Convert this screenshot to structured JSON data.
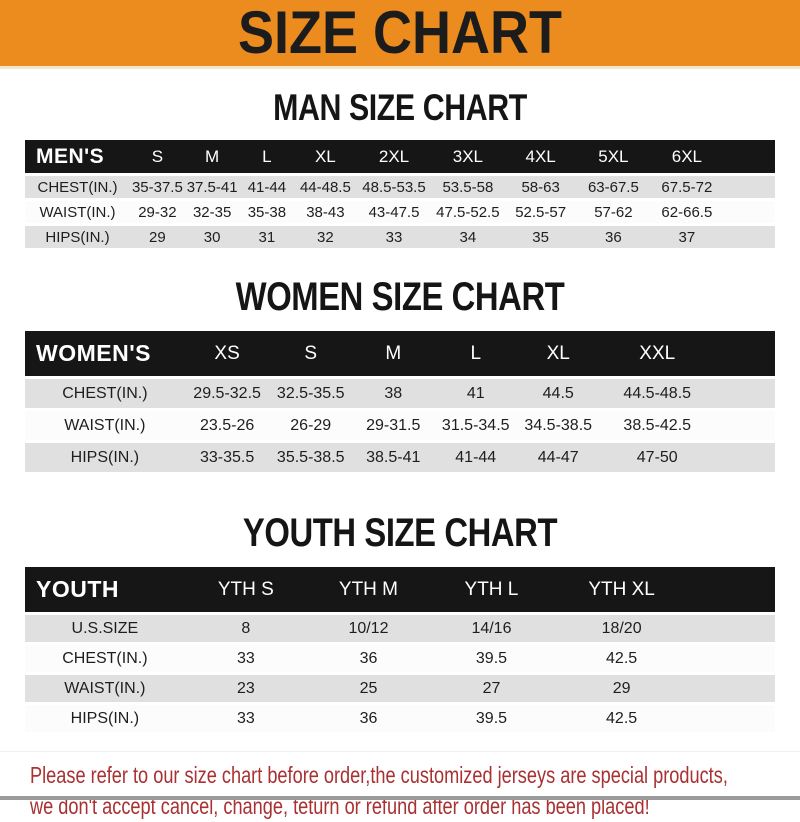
{
  "banner": {
    "title": "SIZE CHART"
  },
  "chart_data": [
    {
      "type": "table",
      "id": "men",
      "title": "MAN SIZE CHART",
      "corner_label": "MEN'S",
      "columns": [
        "S",
        "M",
        "L",
        "XL",
        "2XL",
        "3XL",
        "4XL",
        "5XL",
        "6XL"
      ],
      "rows": [
        {
          "label": "CHEST(IN.)",
          "values": [
            "35-37.5",
            "37.5-41",
            "41-44",
            "44-48.5",
            "48.5-53.5",
            "53.5-58",
            "58-63",
            "63-67.5",
            "67.5-72"
          ]
        },
        {
          "label": "WAIST(IN.)",
          "values": [
            "29-32",
            "32-35",
            "35-38",
            "38-43",
            "43-47.5",
            "47.5-52.5",
            "52.5-57",
            "57-62",
            "62-66.5"
          ]
        },
        {
          "label": "HIPS(IN.)",
          "values": [
            "29",
            "30",
            "31",
            "32",
            "33",
            "34",
            "35",
            "36",
            "37"
          ]
        }
      ]
    },
    {
      "type": "table",
      "id": "women",
      "title": "WOMEN SIZE CHART",
      "corner_label": "WOMEN'S",
      "columns": [
        "XS",
        "S",
        "M",
        "L",
        "XL",
        "XXL"
      ],
      "rows": [
        {
          "label": "CHEST(IN.)",
          "values": [
            "29.5-32.5",
            "32.5-35.5",
            "38",
            "41",
            "44.5",
            "44.5-48.5"
          ]
        },
        {
          "label": "WAIST(IN.)",
          "values": [
            "23.5-26",
            "26-29",
            "29-31.5",
            "31.5-34.5",
            "34.5-38.5",
            "38.5-42.5"
          ]
        },
        {
          "label": "HIPS(IN.)",
          "values": [
            "33-35.5",
            "35.5-38.5",
            "38.5-41",
            "41-44",
            "44-47",
            "47-50"
          ]
        }
      ]
    },
    {
      "type": "table",
      "id": "youth",
      "title": "YOUTH SIZE CHART",
      "corner_label": "YOUTH",
      "columns": [
        "YTH S",
        "YTH M",
        "YTH L",
        "YTH XL"
      ],
      "rows": [
        {
          "label": "U.S.SIZE",
          "values": [
            "8",
            "10/12",
            "14/16",
            "18/20"
          ]
        },
        {
          "label": "CHEST(IN.)",
          "values": [
            "33",
            "36",
            "39.5",
            "42.5"
          ]
        },
        {
          "label": "WAIST(IN.)",
          "values": [
            "23",
            "25",
            "27",
            "29"
          ]
        },
        {
          "label": "HIPS(IN.)",
          "values": [
            "33",
            "36",
            "39.5",
            "42.5"
          ]
        }
      ]
    }
  ],
  "footer": {
    "line1": "Please refer to our size chart before order,the customized jerseys are special products,",
    "line2": "we don't accept cancel, change, teturn or refund after order has been placed!"
  },
  "colors": {
    "banner_orange": "#EC8B1E",
    "header_bar_black": "#161616",
    "row_gray": "#E0E0E0",
    "row_white": "#FCFCFC",
    "heading_black": "#151515",
    "footer_red": "#A93132"
  }
}
